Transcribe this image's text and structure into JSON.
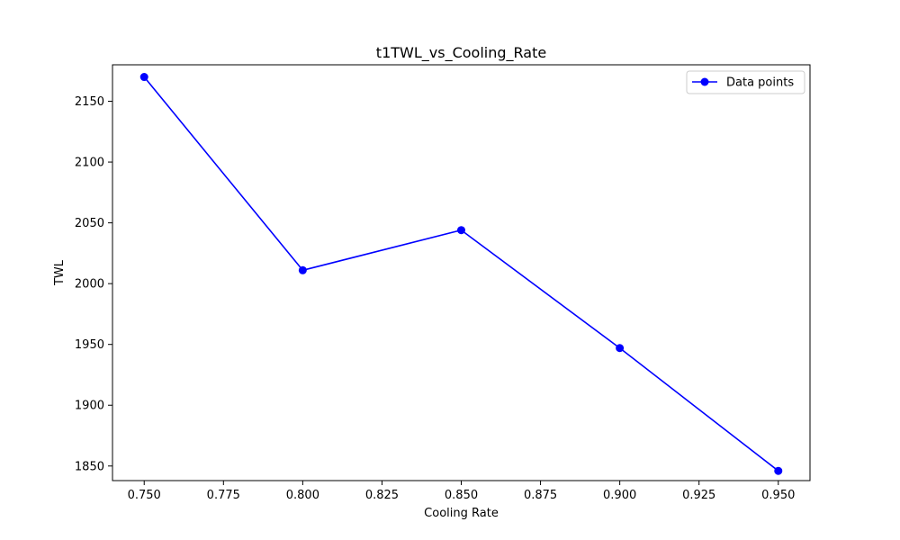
{
  "chart_data": {
    "type": "line",
    "title": "t1TWL_vs_Cooling_Rate",
    "xlabel": "Cooling Rate",
    "ylabel": "TWL",
    "x": [
      0.75,
      0.8,
      0.85,
      0.9,
      0.95
    ],
    "series": [
      {
        "name": "Data points",
        "values": [
          2170,
          2011,
          2044,
          1947,
          1846
        ],
        "color": "#0000ff",
        "marker": "circle"
      }
    ],
    "xlim": [
      0.74,
      0.96
    ],
    "ylim": [
      1838,
      2180
    ],
    "x_ticks": [
      "0.750",
      "0.775",
      "0.800",
      "0.825",
      "0.850",
      "0.875",
      "0.900",
      "0.925",
      "0.950"
    ],
    "y_ticks": [
      "1850",
      "1900",
      "1950",
      "2000",
      "2050",
      "2100",
      "2150"
    ],
    "grid": false,
    "legend_position": "top-right"
  }
}
